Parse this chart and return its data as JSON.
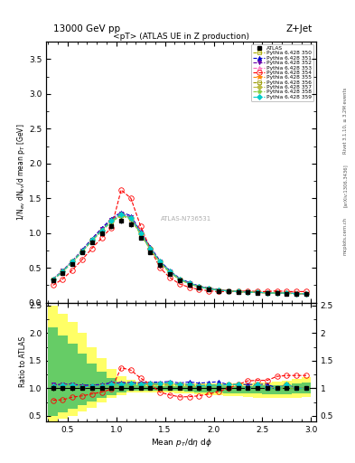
{
  "title_top": "13000 GeV pp",
  "title_right": "Z+Jet",
  "plot_title": "<pT> (ATLAS UE in Z production)",
  "xlabel": "Mean $p_{T}$/d$\\eta$ d$\\phi$",
  "ylabel_main": "1/N$_{ev}$ dN$_{ev}$/d mean p$_T$ [GeV]",
  "ylabel_ratio": "Ratio to ATLAS",
  "rivet_label": "Rivet 3.1.10, ≥ 3.2M events",
  "arxiv_label": "[arXiv:1306.3436]",
  "mcplots_label": "mcplots.cern.ch",
  "watermark": "ATLAS-N736531",
  "main_ylim": [
    0,
    3.75
  ],
  "ratio_ylim": [
    0.4,
    2.55
  ],
  "xlim": [
    0.28,
    3.05
  ],
  "main_yticks": [
    0.0,
    0.5,
    1.0,
    1.5,
    2.0,
    2.5,
    3.0,
    3.5
  ],
  "ratio_yticks": [
    0.5,
    1.0,
    1.5,
    2.0,
    2.5
  ],
  "xticks": [
    0.5,
    1.0,
    1.5,
    2.0,
    2.5,
    3.0
  ],
  "atlas_x": [
    0.35,
    0.45,
    0.55,
    0.65,
    0.75,
    0.85,
    0.95,
    1.05,
    1.15,
    1.25,
    1.35,
    1.45,
    1.55,
    1.65,
    1.75,
    1.85,
    1.95,
    2.05,
    2.15,
    2.25,
    2.35,
    2.45,
    2.55,
    2.65,
    2.75,
    2.85,
    2.95
  ],
  "atlas_y": [
    0.32,
    0.43,
    0.56,
    0.72,
    0.87,
    1.0,
    1.1,
    1.18,
    1.13,
    0.93,
    0.72,
    0.54,
    0.41,
    0.32,
    0.26,
    0.22,
    0.19,
    0.17,
    0.16,
    0.15,
    0.15,
    0.14,
    0.14,
    0.14,
    0.13,
    0.13,
    0.13
  ],
  "atlas_yerr": [
    0.015,
    0.018,
    0.022,
    0.025,
    0.03,
    0.035,
    0.038,
    0.04,
    0.038,
    0.03,
    0.024,
    0.018,
    0.014,
    0.011,
    0.009,
    0.008,
    0.007,
    0.006,
    0.006,
    0.005,
    0.005,
    0.005,
    0.005,
    0.005,
    0.004,
    0.004,
    0.004
  ],
  "mc_series": [
    {
      "label": "Pythia 6.428 350",
      "color": "#aaaa00",
      "marker": "s",
      "markersize": 3,
      "linestyle": "--",
      "filled": false,
      "y": [
        0.33,
        0.45,
        0.58,
        0.74,
        0.9,
        1.04,
        1.17,
        1.26,
        1.21,
        0.99,
        0.77,
        0.57,
        0.44,
        0.34,
        0.27,
        0.23,
        0.2,
        0.18,
        0.17,
        0.16,
        0.15,
        0.15,
        0.14,
        0.14,
        0.14,
        0.13,
        0.13
      ]
    },
    {
      "label": "Pythia 6.428 351",
      "color": "#0000cc",
      "marker": "^",
      "markersize": 3,
      "linestyle": "--",
      "filled": true,
      "y": [
        0.34,
        0.46,
        0.6,
        0.76,
        0.92,
        1.07,
        1.21,
        1.3,
        1.25,
        1.02,
        0.8,
        0.6,
        0.46,
        0.35,
        0.29,
        0.24,
        0.21,
        0.19,
        0.17,
        0.16,
        0.16,
        0.15,
        0.15,
        0.14,
        0.14,
        0.13,
        0.13
      ]
    },
    {
      "label": "Pythia 6.428 352",
      "color": "#6600aa",
      "marker": "v",
      "markersize": 3,
      "linestyle": "--",
      "filled": true,
      "y": [
        0.34,
        0.46,
        0.6,
        0.75,
        0.91,
        1.06,
        1.19,
        1.28,
        1.23,
        1.01,
        0.78,
        0.59,
        0.45,
        0.34,
        0.28,
        0.23,
        0.2,
        0.18,
        0.17,
        0.16,
        0.15,
        0.15,
        0.14,
        0.14,
        0.14,
        0.13,
        0.13
      ]
    },
    {
      "label": "Pythia 6.428 353",
      "color": "#ff66bb",
      "marker": "^",
      "markersize": 3,
      "linestyle": "--",
      "filled": false,
      "y": [
        0.33,
        0.45,
        0.59,
        0.74,
        0.89,
        1.04,
        1.17,
        1.26,
        1.21,
        0.99,
        0.77,
        0.58,
        0.44,
        0.34,
        0.27,
        0.23,
        0.2,
        0.18,
        0.17,
        0.16,
        0.15,
        0.15,
        0.14,
        0.14,
        0.14,
        0.13,
        0.13
      ]
    },
    {
      "label": "Pythia 6.428 354",
      "color": "#ff0000",
      "marker": "o",
      "markersize": 4,
      "linestyle": "--",
      "filled": false,
      "y": [
        0.25,
        0.34,
        0.47,
        0.62,
        0.78,
        0.93,
        1.08,
        1.62,
        1.5,
        1.1,
        0.77,
        0.5,
        0.36,
        0.27,
        0.22,
        0.19,
        0.17,
        0.16,
        0.16,
        0.16,
        0.17,
        0.16,
        0.16,
        0.17,
        0.16,
        0.16,
        0.16
      ]
    },
    {
      "label": "Pythia 6.428 355",
      "color": "#ff8800",
      "marker": "*",
      "markersize": 4,
      "linestyle": "--",
      "filled": true,
      "y": [
        0.33,
        0.45,
        0.59,
        0.74,
        0.9,
        1.04,
        1.18,
        1.27,
        1.22,
        1.0,
        0.78,
        0.59,
        0.45,
        0.34,
        0.28,
        0.23,
        0.2,
        0.18,
        0.17,
        0.16,
        0.15,
        0.15,
        0.14,
        0.14,
        0.14,
        0.13,
        0.13
      ]
    },
    {
      "label": "Pythia 6.428 356",
      "color": "#999900",
      "marker": "s",
      "markersize": 3,
      "linestyle": "--",
      "filled": false,
      "y": [
        0.33,
        0.45,
        0.59,
        0.74,
        0.89,
        1.04,
        1.17,
        1.26,
        1.21,
        0.99,
        0.77,
        0.58,
        0.44,
        0.34,
        0.27,
        0.23,
        0.2,
        0.18,
        0.17,
        0.16,
        0.15,
        0.15,
        0.14,
        0.14,
        0.14,
        0.13,
        0.13
      ]
    },
    {
      "label": "Pythia 6.428 357",
      "color": "#bbbb44",
      "marker": "D",
      "markersize": 3,
      "linestyle": "--",
      "filled": true,
      "y": [
        0.33,
        0.45,
        0.59,
        0.74,
        0.89,
        1.04,
        1.17,
        1.26,
        1.21,
        0.99,
        0.77,
        0.58,
        0.44,
        0.34,
        0.27,
        0.23,
        0.2,
        0.18,
        0.17,
        0.16,
        0.15,
        0.15,
        0.14,
        0.14,
        0.14,
        0.13,
        0.13
      ]
    },
    {
      "label": "Pythia 6.428 358",
      "color": "#88cc44",
      "marker": "p",
      "markersize": 3,
      "linestyle": "--",
      "filled": true,
      "y": [
        0.33,
        0.45,
        0.58,
        0.73,
        0.89,
        1.03,
        1.16,
        1.25,
        1.2,
        0.98,
        0.76,
        0.57,
        0.43,
        0.33,
        0.27,
        0.23,
        0.2,
        0.18,
        0.17,
        0.16,
        0.15,
        0.15,
        0.14,
        0.14,
        0.13,
        0.13,
        0.13
      ]
    },
    {
      "label": "Pythia 6.428 359",
      "color": "#00cccc",
      "marker": "D",
      "markersize": 3,
      "linestyle": "--",
      "filled": true,
      "y": [
        0.33,
        0.45,
        0.59,
        0.74,
        0.9,
        1.04,
        1.18,
        1.27,
        1.22,
        1.0,
        0.78,
        0.59,
        0.45,
        0.34,
        0.28,
        0.23,
        0.2,
        0.18,
        0.17,
        0.16,
        0.15,
        0.15,
        0.14,
        0.14,
        0.14,
        0.13,
        0.13
      ]
    }
  ],
  "band_yellow_edges": [
    0.3,
    0.4,
    0.5,
    0.6,
    0.7,
    0.8,
    0.9,
    1.0,
    1.1,
    1.2,
    1.3,
    1.4,
    1.5,
    1.6,
    1.7,
    1.8,
    1.9,
    2.0,
    2.1,
    2.2,
    2.3,
    2.4,
    2.5,
    2.6,
    2.7,
    2.8,
    2.9,
    3.0
  ],
  "band_yellow_low": [
    0.4,
    0.45,
    0.5,
    0.58,
    0.65,
    0.75,
    0.82,
    0.88,
    0.92,
    0.93,
    0.93,
    0.92,
    0.92,
    0.91,
    0.9,
    0.89,
    0.88,
    0.87,
    0.86,
    0.85,
    0.84,
    0.83,
    0.82,
    0.82,
    0.82,
    0.83,
    0.84,
    0.86
  ],
  "band_yellow_high": [
    2.5,
    2.35,
    2.2,
    2.0,
    1.75,
    1.55,
    1.35,
    1.22,
    1.15,
    1.12,
    1.1,
    1.09,
    1.09,
    1.08,
    1.08,
    1.08,
    1.08,
    1.08,
    1.08,
    1.09,
    1.09,
    1.1,
    1.11,
    1.12,
    1.14,
    1.17,
    1.2,
    1.25
  ],
  "band_green_low": [
    0.5,
    0.56,
    0.62,
    0.7,
    0.76,
    0.83,
    0.88,
    0.92,
    0.95,
    0.96,
    0.96,
    0.96,
    0.95,
    0.95,
    0.94,
    0.93,
    0.93,
    0.92,
    0.91,
    0.91,
    0.9,
    0.9,
    0.89,
    0.89,
    0.89,
    0.9,
    0.91,
    0.92
  ],
  "band_green_high": [
    2.1,
    1.95,
    1.8,
    1.62,
    1.45,
    1.3,
    1.18,
    1.1,
    1.07,
    1.05,
    1.04,
    1.04,
    1.04,
    1.03,
    1.03,
    1.03,
    1.03,
    1.03,
    1.03,
    1.03,
    1.04,
    1.04,
    1.05,
    1.05,
    1.06,
    1.08,
    1.1,
    1.13
  ]
}
